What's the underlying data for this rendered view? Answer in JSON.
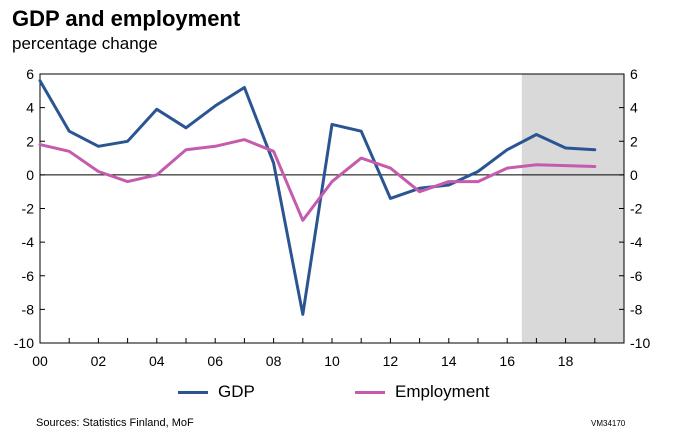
{
  "header": {
    "title": "GDP and employment",
    "subtitle": "percentage change"
  },
  "footer": {
    "source": "Sources: Statistics Finland, MoF",
    "code": "VM34170"
  },
  "colors": {
    "gdp": "#2a5592",
    "employment": "#c55bad",
    "forecast_shade": "#d9d9d9"
  },
  "chart_data": {
    "type": "line",
    "x": [
      2000,
      2001,
      2002,
      2003,
      2004,
      2005,
      2006,
      2007,
      2008,
      2009,
      2010,
      2011,
      2012,
      2013,
      2014,
      2015,
      2016,
      2017,
      2018,
      2019
    ],
    "x_tick_labels": [
      "00",
      "02",
      "04",
      "06",
      "08",
      "10",
      "12",
      "14",
      "16",
      "18"
    ],
    "x_tick_values": [
      2000,
      2002,
      2004,
      2006,
      2008,
      2010,
      2012,
      2014,
      2016,
      2018
    ],
    "xlim": [
      2000,
      2020
    ],
    "ylim": [
      -10,
      6
    ],
    "y_ticks": [
      -10,
      -8,
      -6,
      -4,
      -2,
      0,
      2,
      4,
      6
    ],
    "y_tick_labels": [
      "-10",
      "-8",
      "-6",
      "-4",
      "-2",
      "0",
      "2",
      "4",
      "6"
    ],
    "secondary_y_ticks": [
      -10,
      -8,
      -6,
      -4,
      -2,
      0,
      2,
      4,
      6
    ],
    "secondary_y_tick_labels": [
      "-10",
      "-8",
      "-6",
      "-4",
      "-2",
      "0",
      "2",
      "4",
      "6"
    ],
    "forecast_start": 2016.5,
    "series": [
      {
        "name": "GDP",
        "values": [
          5.6,
          2.6,
          1.7,
          2.0,
          3.9,
          2.8,
          4.1,
          5.2,
          0.7,
          -8.3,
          3.0,
          2.6,
          -1.4,
          -0.8,
          -0.6,
          0.2,
          1.5,
          2.4,
          1.6,
          1.5
        ]
      },
      {
        "name": "Employment",
        "values": [
          1.8,
          1.4,
          0.2,
          -0.4,
          0.0,
          1.5,
          1.7,
          2.1,
          1.4,
          -2.7,
          -0.4,
          1.0,
          0.4,
          -1.0,
          -0.4,
          -0.4,
          0.4,
          0.6,
          0.55,
          0.5
        ]
      }
    ],
    "grid": false,
    "legend_position": "bottom"
  }
}
